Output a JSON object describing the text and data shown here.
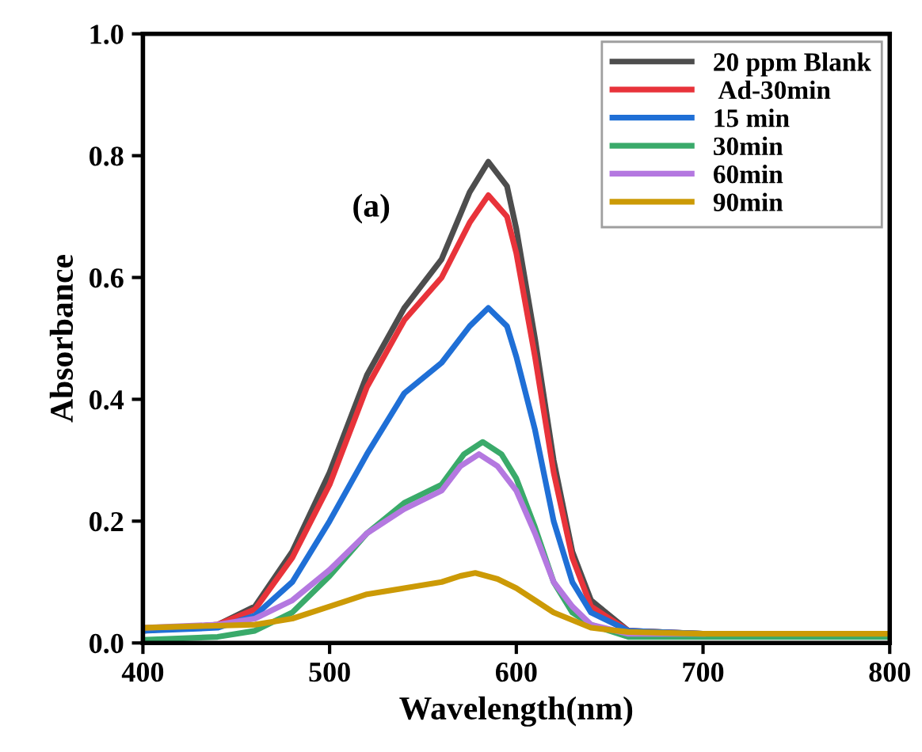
{
  "chart_data": {
    "type": "line",
    "xlabel": "Wavelength(nm)",
    "ylabel": "Absorbance",
    "annotations": [
      "(a)"
    ],
    "xlim": [
      400,
      800
    ],
    "ylim": [
      0,
      1.0
    ],
    "xticks": [
      400,
      500,
      600,
      700,
      800
    ],
    "yticks": [
      {
        "value": 0,
        "label": "0.0"
      },
      0.2,
      0.4,
      0.6,
      0.8,
      {
        "value": 1.0,
        "label": "1.0"
      }
    ],
    "grid": false,
    "legend": "top right",
    "marker": "none",
    "line_style": "solid",
    "series": [
      {
        "name": "20 ppm Blank",
        "color": "#4d4d4d",
        "x": [
          400,
          440,
          460,
          480,
          500,
          520,
          540,
          560,
          575,
          585,
          595,
          600,
          610,
          620,
          630,
          640,
          660,
          700,
          800
        ],
        "values": [
          0.02,
          0.03,
          0.06,
          0.15,
          0.28,
          0.44,
          0.55,
          0.63,
          0.74,
          0.79,
          0.75,
          0.68,
          0.5,
          0.3,
          0.15,
          0.07,
          0.02,
          0.015,
          0.015
        ]
      },
      {
        "name": " Ad-30min",
        "color": "#e8333a",
        "x": [
          400,
          440,
          460,
          480,
          500,
          520,
          540,
          560,
          575,
          585,
          595,
          600,
          610,
          620,
          630,
          640,
          660,
          700
        ],
        "values": [
          0.02,
          0.03,
          0.055,
          0.14,
          0.26,
          0.42,
          0.53,
          0.6,
          0.69,
          0.735,
          0.7,
          0.64,
          0.47,
          0.28,
          0.14,
          0.06,
          0.02,
          0.015
        ]
      },
      {
        "name": "15 min",
        "color": "#1f6fd6",
        "x": [
          400,
          440,
          460,
          480,
          500,
          520,
          540,
          560,
          575,
          585,
          595,
          600,
          610,
          620,
          630,
          640,
          660,
          700,
          800
        ],
        "values": [
          0.02,
          0.025,
          0.045,
          0.1,
          0.2,
          0.31,
          0.41,
          0.46,
          0.52,
          0.55,
          0.52,
          0.47,
          0.35,
          0.2,
          0.1,
          0.05,
          0.02,
          0.015,
          0.015
        ]
      },
      {
        "name": "30min",
        "color": "#3aaa6a",
        "x": [
          400,
          440,
          460,
          480,
          500,
          520,
          540,
          560,
          572,
          582,
          592,
          600,
          610,
          620,
          630,
          640,
          660,
          700,
          800
        ],
        "values": [
          0.005,
          0.01,
          0.02,
          0.05,
          0.11,
          0.18,
          0.23,
          0.26,
          0.31,
          0.33,
          0.31,
          0.27,
          0.19,
          0.1,
          0.05,
          0.03,
          0.01,
          0.01,
          0.01
        ]
      },
      {
        "name": "60min",
        "color": "#b478e0",
        "x": [
          400,
          440,
          460,
          480,
          500,
          520,
          540,
          560,
          570,
          580,
          590,
          600,
          610,
          620,
          630,
          640,
          660,
          700
        ],
        "values": [
          0.025,
          0.03,
          0.04,
          0.07,
          0.12,
          0.18,
          0.22,
          0.25,
          0.29,
          0.31,
          0.29,
          0.25,
          0.18,
          0.1,
          0.06,
          0.03,
          0.015,
          0.015
        ]
      },
      {
        "name": "90min",
        "color": "#cc9a06",
        "x": [
          400,
          460,
          480,
          500,
          520,
          540,
          560,
          570,
          578,
          590,
          600,
          610,
          620,
          640,
          660,
          700,
          800
        ],
        "values": [
          0.025,
          0.03,
          0.04,
          0.06,
          0.08,
          0.09,
          0.1,
          0.11,
          0.115,
          0.105,
          0.09,
          0.07,
          0.05,
          0.025,
          0.018,
          0.015,
          0.015
        ]
      }
    ]
  }
}
